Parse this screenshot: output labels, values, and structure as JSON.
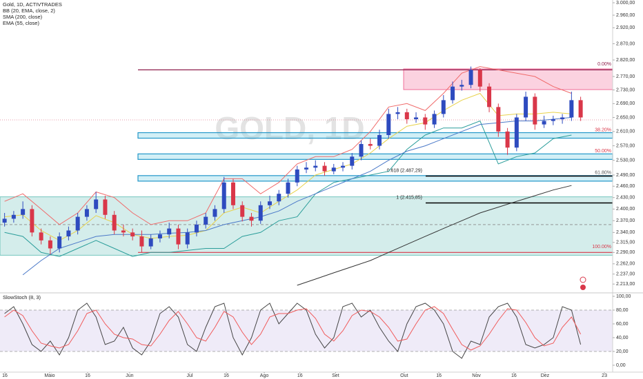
{
  "chart_data": [
    {
      "type": "candlestick",
      "watermark": "GOLD, 1D",
      "legend": [
        "Gold, 1D, ACTIVTRADES",
        "BB (20, EMA, close, 2)",
        "SMA (200, close)",
        "EMA (55, close)"
      ],
      "log_scale": true,
      "up_color": "#2e4bbf",
      "down_color": "#d93749",
      "candles": {
        "open": [
          2365,
          2375,
          2385,
          2400,
          2340,
          2320,
          2300,
          2330,
          2345,
          2380,
          2400,
          2425,
          2385,
          2345,
          2340,
          2330,
          2305,
          2325,
          2335,
          2350,
          2310,
          2340,
          2360,
          2380,
          2400,
          2470,
          2410,
          2380,
          2370,
          2410,
          2420,
          2440,
          2470,
          2505,
          2510,
          2515,
          2500,
          2510,
          2515,
          2540,
          2575,
          2570,
          2600,
          2660,
          2665,
          2645,
          2650,
          2630,
          2660,
          2700,
          2740,
          2745,
          2790,
          2740,
          2680,
          2610,
          2565,
          2650,
          2710,
          2630,
          2640,
          2645,
          2650,
          2700
        ],
        "high": [
          2390,
          2395,
          2420,
          2410,
          2350,
          2330,
          2340,
          2355,
          2390,
          2410,
          2445,
          2435,
          2395,
          2360,
          2350,
          2345,
          2335,
          2345,
          2365,
          2360,
          2350,
          2370,
          2390,
          2410,
          2485,
          2480,
          2420,
          2390,
          2420,
          2435,
          2450,
          2480,
          2515,
          2525,
          2530,
          2525,
          2520,
          2525,
          2550,
          2585,
          2590,
          2615,
          2675,
          2680,
          2675,
          2665,
          2660,
          2670,
          2715,
          2755,
          2760,
          2800,
          2795,
          2750,
          2690,
          2620,
          2660,
          2725,
          2720,
          2655,
          2655,
          2660,
          2725,
          2710
        ],
        "low": [
          2355,
          2365,
          2375,
          2330,
          2310,
          2285,
          2290,
          2320,
          2335,
          2370,
          2390,
          2375,
          2335,
          2330,
          2320,
          2290,
          2298,
          2315,
          2325,
          2298,
          2300,
          2330,
          2350,
          2370,
          2390,
          2400,
          2368,
          2355,
          2362,
          2400,
          2410,
          2430,
          2460,
          2495,
          2500,
          2488,
          2492,
          2500,
          2505,
          2530,
          2560,
          2560,
          2590,
          2645,
          2632,
          2635,
          2615,
          2620,
          2650,
          2690,
          2728,
          2735,
          2725,
          2665,
          2595,
          2545,
          2555,
          2640,
          2615,
          2620,
          2628,
          2632,
          2640,
          2640
        ],
        "close": [
          2375,
          2385,
          2400,
          2340,
          2320,
          2300,
          2330,
          2345,
          2380,
          2400,
          2425,
          2385,
          2345,
          2340,
          2330,
          2305,
          2325,
          2335,
          2350,
          2310,
          2340,
          2360,
          2380,
          2400,
          2470,
          2410,
          2380,
          2370,
          2410,
          2420,
          2440,
          2470,
          2505,
          2510,
          2515,
          2500,
          2510,
          2515,
          2540,
          2575,
          2570,
          2600,
          2660,
          2665,
          2645,
          2650,
          2630,
          2660,
          2700,
          2740,
          2745,
          2790,
          2740,
          2680,
          2610,
          2565,
          2650,
          2710,
          2630,
          2640,
          2645,
          2650,
          2700,
          2650
        ]
      },
      "series": [
        {
          "color": "#f06a6a",
          "values": [
            2420,
            2440,
            2400,
            2360,
            2390,
            2445,
            2430,
            2390,
            2360,
            2370,
            2370,
            2390,
            2480,
            2480,
            2440,
            2470,
            2520,
            2540,
            2540,
            2560,
            2610,
            2680,
            2690,
            2670,
            2720,
            2780,
            2800,
            2790,
            2780,
            2770,
            2740,
            2720
          ]
        },
        {
          "color": "#e8d24a",
          "values": [
            2380,
            2385,
            2345,
            2320,
            2345,
            2383,
            2365,
            2335,
            2325,
            2330,
            2333,
            2345,
            2390,
            2405,
            2390,
            2420,
            2450,
            2490,
            2505,
            2520,
            2550,
            2590,
            2625,
            2635,
            2670,
            2700,
            2720,
            2655,
            2660,
            2660,
            2665,
            2660
          ]
        },
        {
          "color": "#2a9d9a",
          "values": [
            2340,
            2330,
            2290,
            2280,
            2300,
            2320,
            2300,
            2280,
            2290,
            2290,
            2295,
            2300,
            2300,
            2330,
            2340,
            2370,
            2380,
            2440,
            2470,
            2480,
            2490,
            2500,
            2560,
            2600,
            2620,
            2620,
            2640,
            2520,
            2540,
            2550,
            2590,
            2600
          ]
        },
        {
          "color": "#4a78c8",
          "values": [
            null,
            2235,
            2270,
            2300,
            2315,
            2330,
            2335,
            2335,
            2335,
            2338,
            2340,
            2345,
            2360,
            2370,
            2380,
            2395,
            2420,
            2440,
            2460,
            2480,
            2500,
            2530,
            2555,
            2570,
            2590,
            2610,
            2630,
            2635,
            2640,
            2640,
            2645,
            2650
          ]
        },
        {
          "color": "#333333",
          "values": [
            null,
            null,
            null,
            null,
            null,
            null,
            null,
            null,
            null,
            null,
            null,
            null,
            null,
            null,
            null,
            null,
            2210,
            2225,
            2240,
            2255,
            2270,
            2290,
            2310,
            2330,
            2350,
            2370,
            2390,
            2405,
            2420,
            2435,
            2450,
            2462
          ]
        }
      ],
      "zones": [
        {
          "low": 2283,
          "high": 2432,
          "color": "#26a69a"
        },
        {
          "low": 2731,
          "high": 2793,
          "color": "#e91e63"
        }
      ],
      "fib_levels": [
        {
          "label": "0.00%",
          "price": 2790,
          "color": "#8e1d4a"
        },
        {
          "label": "38.20%",
          "price": 2599,
          "color": "#d93749"
        },
        {
          "label": "50.00%",
          "price": 2540,
          "color": "#d93749"
        },
        {
          "label": "61.80%",
          "price": 2481,
          "color": "#555555"
        },
        {
          "label": "100.00%",
          "price": 2290,
          "color": "#d93749"
        }
      ],
      "targets": [
        {
          "label": "0.618 (2.487,29)",
          "price": 2487.29
        },
        {
          "label": "1 (2.415,85)",
          "price": 2415.85
        }
      ],
      "price_line": 2643,
      "dashed_line": 2360,
      "ylim": [
        2192,
        3009
      ],
      "yticks": [
        {
          "value": 3000,
          "label": "3.000,00"
        },
        {
          "value": 2960,
          "label": "2.960,00"
        },
        {
          "value": 2920,
          "label": "2.920,00"
        },
        {
          "value": 2870,
          "label": "2.870,00"
        },
        {
          "value": 2820,
          "label": "2.820,00"
        },
        {
          "value": 2770,
          "label": "2.770,00"
        },
        {
          "value": 2730,
          "label": "2.730,00"
        },
        {
          "value": 2690,
          "label": "2.690,00"
        },
        {
          "value": 2650,
          "label": "2.650,00"
        },
        {
          "value": 2610,
          "label": "2.610,00"
        },
        {
          "value": 2570,
          "label": "2.570,00"
        },
        {
          "value": 2530,
          "label": "2.530,00"
        },
        {
          "value": 2490,
          "label": "2.490,00"
        },
        {
          "value": 2460,
          "label": "2.460,00"
        },
        {
          "value": 2430,
          "label": "2.430,00"
        },
        {
          "value": 2400,
          "label": "2.400,00"
        },
        {
          "value": 2370,
          "label": "2.370,00"
        },
        {
          "value": 2340,
          "label": "2.340,00"
        },
        {
          "value": 2315,
          "label": "2.315,00"
        },
        {
          "value": 2290,
          "label": "2.290,00"
        },
        {
          "value": 2262,
          "label": "2.262,00"
        },
        {
          "value": 2237,
          "label": "2.237,00"
        },
        {
          "value": 2213,
          "label": "2.213,00"
        }
      ],
      "xlim": [
        0,
        67
      ],
      "xticks": [
        {
          "value": 0.53,
          "label": "16"
        },
        {
          "value": 5.43,
          "label": "Maio"
        },
        {
          "value": 9.58,
          "label": "16"
        },
        {
          "value": 14.18,
          "label": "Jun"
        },
        {
          "value": 20.75,
          "label": "Jul"
        },
        {
          "value": 24.75,
          "label": "16"
        },
        {
          "value": 28.9,
          "label": "Ago"
        },
        {
          "value": 32.8,
          "label": "16"
        },
        {
          "value": 36.7,
          "label": "Set"
        },
        {
          "value": 44.2,
          "label": "Out"
        },
        {
          "value": 48,
          "label": "16"
        },
        {
          "value": 52.1,
          "label": "Nov"
        },
        {
          "value": 56.2,
          "label": "16"
        },
        {
          "value": 59.6,
          "label": "Dez"
        },
        {
          "value": 66.1,
          "label": "23"
        }
      ]
    },
    {
      "type": "line",
      "title": "SlowStoch (8, 3)",
      "band": [
        20,
        80
      ],
      "band_color": "#7e57c2",
      "series": [
        {
          "color": "#444444",
          "values": [
            75,
            85,
            60,
            30,
            20,
            35,
            15,
            40,
            80,
            90,
            70,
            30,
            35,
            55,
            25,
            15,
            35,
            75,
            85,
            70,
            30,
            20,
            55,
            85,
            90,
            40,
            15,
            40,
            80,
            90,
            60,
            75,
            90,
            80,
            45,
            25,
            40,
            85,
            90,
            70,
            80,
            55,
            35,
            20,
            60,
            85,
            90,
            80,
            60,
            20,
            10,
            35,
            30,
            70,
            85,
            90,
            70,
            30,
            25,
            30,
            40,
            85,
            80,
            30
          ]
        },
        {
          "color": "#f05a5a",
          "values": [
            70,
            80,
            72,
            50,
            32,
            28,
            25,
            30,
            50,
            75,
            80,
            60,
            45,
            40,
            38,
            30,
            28,
            45,
            65,
            78,
            60,
            40,
            35,
            55,
            78,
            70,
            48,
            30,
            45,
            70,
            75,
            75,
            80,
            82,
            68,
            45,
            35,
            50,
            72,
            80,
            78,
            70,
            55,
            35,
            38,
            60,
            80,
            85,
            75,
            52,
            30,
            22,
            28,
            45,
            65,
            82,
            80,
            62,
            40,
            28,
            32,
            55,
            70,
            45
          ]
        }
      ],
      "ylim": [
        -10,
        105
      ],
      "yticks": [
        {
          "value": 100,
          "label": "100,00"
        },
        {
          "value": 80,
          "label": "80,00"
        },
        {
          "value": 60,
          "label": "60,00"
        },
        {
          "value": 40,
          "label": "40,00"
        },
        {
          "value": 20,
          "label": "20,00"
        },
        {
          "value": 0,
          "label": "0,00"
        }
      ]
    }
  ]
}
